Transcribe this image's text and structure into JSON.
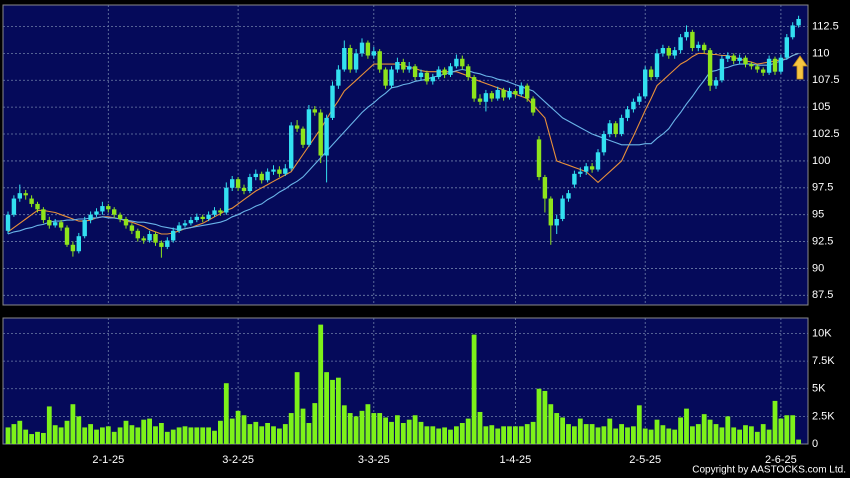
{
  "chart_data": {
    "type": "candlestick",
    "categories": [
      null,
      null,
      null,
      null,
      null,
      null,
      null,
      null,
      null,
      null,
      null,
      null,
      null,
      null,
      null,
      null,
      null,
      "2-1-25",
      null,
      null,
      null,
      null,
      null,
      null,
      null,
      null,
      null,
      null,
      null,
      null,
      null,
      null,
      null,
      null,
      null,
      null,
      null,
      null,
      null,
      "3-2-25",
      null,
      null,
      null,
      null,
      null,
      null,
      null,
      null,
      null,
      null,
      null,
      null,
      null,
      null,
      null,
      null,
      null,
      null,
      null,
      null,
      null,
      null,
      "3-3-25",
      null,
      null,
      null,
      null,
      null,
      null,
      null,
      null,
      null,
      null,
      null,
      null,
      null,
      null,
      null,
      null,
      null,
      null,
      null,
      null,
      null,
      null,
      null,
      "1-4-25",
      null,
      null,
      null,
      null,
      null,
      null,
      null,
      null,
      null,
      null,
      null,
      null,
      null,
      null,
      null,
      null,
      null,
      null,
      null,
      null,
      null,
      "2-5-25",
      null,
      null,
      null,
      null,
      null,
      null,
      null,
      null,
      null,
      null,
      null,
      null,
      null,
      null,
      null,
      null,
      null,
      null,
      null,
      null,
      null,
      null,
      "2-6-25",
      null,
      null,
      null
    ],
    "open": [
      93.5,
      95.0,
      96.5,
      97.0,
      96.5,
      96.0,
      95.5,
      94.5,
      94.0,
      94.3,
      93.8,
      92.2,
      91.6,
      93.0,
      94.5,
      95.0,
      95.3,
      95.8,
      95.5,
      95.0,
      94.6,
      94.0,
      93.5,
      92.8,
      92.6,
      93.2,
      92.4,
      92.0,
      92.6,
      93.5,
      94.0,
      94.2,
      94.5,
      94.8,
      94.6,
      95.0,
      95.4,
      95.2,
      97.5,
      98.3,
      97.5,
      97.2,
      98.5,
      98.8,
      98.2,
      99.0,
      99.2,
      98.8,
      99.3,
      103.3,
      103.0,
      101.5,
      104.8,
      104.5,
      100.5,
      104.0,
      107.0,
      108.5,
      110.5,
      108.5,
      110.0,
      111.0,
      109.8,
      110.2,
      108.5,
      107.0,
      108.5,
      109.2,
      108.5,
      108.8,
      107.8,
      108.2,
      107.4,
      107.8,
      108.5,
      108.0,
      108.8,
      109.5,
      108.8,
      107.8,
      105.8,
      105.5,
      106.3,
      105.8,
      106.6,
      105.9,
      106.5,
      106.2,
      107.0,
      105.8,
      102.0,
      98.5,
      96.5,
      94.0,
      94.6,
      96.5,
      97.8,
      98.8,
      99.0,
      99.5,
      99.2,
      100.8,
      102.5,
      103.5,
      102.5,
      104.0,
      104.8,
      105.5,
      106.0,
      108.5,
      107.8,
      110.0,
      110.5,
      109.8,
      110.3,
      111.5,
      112.0,
      110.5,
      110.8,
      110.3,
      107.0,
      107.5,
      109.5,
      109.8,
      109.3,
      109.6,
      109.0,
      108.8,
      108.5,
      108.2,
      109.5,
      108.3,
      109.6,
      111.5,
      112.6
    ],
    "high": [
      95.3,
      96.8,
      97.8,
      97.3,
      96.8,
      96.2,
      95.7,
      94.8,
      94.6,
      94.5,
      94.0,
      92.5,
      93.3,
      94.8,
      95.3,
      95.6,
      96.2,
      96.0,
      95.7,
      95.2,
      94.8,
      94.2,
      93.7,
      93.0,
      93.5,
      93.4,
      92.6,
      92.9,
      93.8,
      94.3,
      94.5,
      94.8,
      95.1,
      95.0,
      95.3,
      95.7,
      95.6,
      98.0,
      98.6,
      98.5,
      97.8,
      98.8,
      99.2,
      99.0,
      99.3,
      99.6,
      99.5,
      99.7,
      103.6,
      103.8,
      103.2,
      105.2,
      105.1,
      104.8,
      104.3,
      107.4,
      108.9,
      111.2,
      110.8,
      110.4,
      111.4,
      111.2,
      110.6,
      110.4,
      108.7,
      108.8,
      109.6,
      109.5,
      109.2,
      109.0,
      108.5,
      108.4,
      108.1,
      108.8,
      108.7,
      109.1,
      109.9,
      109.8,
      109.0,
      108.0,
      106.2,
      106.6,
      106.5,
      106.9,
      106.8,
      106.8,
      106.7,
      107.3,
      107.2,
      106.0,
      102.3,
      98.7,
      96.7,
      95.0,
      96.8,
      97.3,
      99.1,
      99.4,
      99.8,
      99.8,
      101.1,
      102.8,
      103.8,
      103.7,
      104.3,
      105.1,
      105.8,
      106.3,
      108.8,
      108.8,
      110.4,
      110.8,
      110.7,
      110.6,
      111.8,
      112.6,
      112.2,
      111.1,
      111.0,
      110.5,
      107.8,
      109.8,
      110.1,
      110.0,
      109.9,
      109.8,
      109.2,
      109.0,
      108.7,
      109.8,
      109.7,
      109.9,
      111.8,
      112.9,
      113.5
    ],
    "low": [
      93.2,
      94.8,
      96.2,
      96.4,
      95.7,
      95.2,
      94.2,
      93.7,
      93.8,
      93.5,
      92.0,
      91.1,
      91.4,
      92.8,
      94.2,
      94.8,
      95.0,
      95.2,
      94.7,
      94.3,
      93.7,
      93.2,
      92.5,
      92.3,
      92.4,
      92.1,
      91.0,
      91.8,
      92.4,
      93.3,
      93.8,
      94.0,
      94.3,
      94.3,
      94.4,
      94.8,
      94.9,
      95.0,
      97.2,
      97.2,
      96.9,
      97.0,
      98.2,
      97.9,
      98.0,
      98.7,
      98.5,
      98.6,
      99.1,
      102.7,
      101.2,
      101.3,
      104.2,
      99.8,
      98.0,
      103.8,
      106.7,
      108.3,
      108.2,
      108.2,
      109.7,
      109.5,
      109.5,
      108.2,
      106.7,
      106.8,
      108.2,
      108.2,
      108.2,
      107.5,
      107.5,
      107.1,
      107.1,
      107.6,
      107.7,
      107.8,
      108.6,
      108.5,
      107.5,
      105.5,
      105.2,
      104.6,
      105.5,
      105.6,
      105.6,
      105.7,
      105.9,
      106.0,
      105.5,
      104.2,
      98.2,
      95.2,
      92.2,
      93.2,
      94.4,
      96.2,
      97.5,
      98.5,
      98.7,
      98.9,
      99.0,
      100.5,
      102.2,
      102.2,
      102.3,
      103.7,
      104.5,
      105.2,
      105.8,
      107.5,
      107.6,
      109.7,
      109.5,
      109.5,
      110.0,
      111.2,
      110.2,
      110.2,
      110.0,
      106.5,
      106.7,
      107.3,
      109.2,
      109.0,
      109.0,
      108.7,
      108.5,
      108.2,
      107.9,
      108.0,
      108.0,
      108.1,
      109.4,
      111.3,
      112.4
    ],
    "close": [
      95.0,
      96.5,
      97.0,
      96.8,
      96.0,
      95.5,
      94.5,
      94.0,
      94.3,
      93.8,
      92.2,
      91.6,
      93.0,
      94.5,
      95.0,
      95.3,
      95.8,
      95.5,
      95.0,
      94.6,
      94.0,
      93.5,
      92.8,
      92.6,
      93.2,
      92.4,
      92.0,
      92.6,
      93.5,
      94.0,
      94.2,
      94.5,
      94.8,
      94.6,
      95.0,
      95.4,
      95.2,
      97.5,
      98.3,
      97.5,
      97.2,
      98.5,
      98.8,
      98.2,
      99.0,
      99.2,
      98.8,
      99.3,
      103.3,
      103.0,
      101.5,
      104.8,
      104.5,
      100.5,
      104.0,
      107.0,
      108.5,
      110.5,
      108.5,
      110.0,
      111.0,
      109.8,
      110.2,
      108.5,
      107.0,
      108.5,
      109.2,
      108.5,
      108.8,
      107.8,
      108.2,
      107.4,
      107.8,
      108.5,
      108.0,
      108.8,
      109.5,
      108.8,
      107.8,
      105.8,
      105.5,
      106.3,
      105.8,
      106.6,
      105.9,
      106.5,
      106.2,
      107.0,
      105.8,
      104.5,
      98.5,
      96.5,
      94.0,
      94.6,
      96.5,
      97.0,
      98.8,
      99.0,
      99.5,
      99.2,
      100.8,
      102.5,
      103.5,
      102.5,
      104.0,
      104.8,
      105.5,
      106.0,
      108.5,
      107.8,
      110.0,
      110.5,
      109.8,
      110.3,
      111.5,
      112.0,
      110.5,
      110.8,
      110.3,
      107.0,
      107.5,
      109.5,
      109.8,
      109.3,
      109.6,
      109.0,
      108.8,
      108.5,
      108.2,
      109.5,
      108.3,
      109.6,
      111.5,
      112.6,
      113.2
    ],
    "up_color": "#33e0f0",
    "down_color": "#8ee41c",
    "lines": [
      {
        "color": "#e8903a",
        "values": [
          93.4,
          93.8,
          94.2,
          94.6,
          95.0,
          95.4,
          95.4,
          95.3,
          95.2,
          95.0,
          94.8,
          94.6,
          94.4,
          94.4,
          94.5,
          94.7,
          94.8,
          94.8,
          94.7,
          94.6,
          94.4,
          94.3,
          94.1,
          93.9,
          93.6,
          93.4,
          93.2,
          93.2,
          93.3,
          93.5,
          93.7,
          93.8,
          94.0,
          94.2,
          94.5,
          94.8,
          95.1,
          95.4,
          95.6,
          96.0,
          96.4,
          96.8,
          97.2,
          97.5,
          97.8,
          98.1,
          98.4,
          98.7,
          99.0,
          99.8,
          100.6,
          101.4,
          102.2,
          103.0,
          103.9,
          104.8,
          105.6,
          106.5,
          107.0,
          107.5,
          108.0,
          108.5,
          109.0,
          109.0,
          109.0,
          109.0,
          109.0,
          108.9,
          108.7,
          108.6,
          108.4,
          108.3,
          108.3,
          108.3,
          108.3,
          108.3,
          108.3,
          108.1,
          107.9,
          107.6,
          107.4,
          107.2,
          107.0,
          106.8,
          106.6,
          106.4,
          106.2,
          106.0,
          105.8,
          105.2,
          104.6,
          104.0,
          102.0,
          100.0,
          99.8,
          99.6,
          99.4,
          99.2,
          99.0,
          98.5,
          98.0,
          98.5,
          99.0,
          99.5,
          100.0,
          101.2,
          102.3,
          103.5,
          104.7,
          105.8,
          107.0,
          107.5,
          108.0,
          108.5,
          109.0,
          109.3,
          109.7,
          110.0,
          110.0,
          109.9,
          109.9,
          109.8,
          109.8,
          109.6,
          109.5,
          109.3,
          109.2,
          109.0,
          109.1,
          109.2,
          109.3,
          109.4,
          109.5,
          109.8,
          110.0
        ]
      },
      {
        "color": "#6ab4e8",
        "values": [
          93.2,
          93.4,
          93.5,
          93.7,
          93.8,
          94.0,
          94.1,
          94.3,
          94.4,
          94.4,
          94.5,
          94.5,
          94.6,
          94.6,
          94.7,
          94.7,
          94.8,
          94.7,
          94.7,
          94.6,
          94.5,
          94.4,
          94.3,
          94.3,
          94.2,
          94.1,
          93.9,
          93.8,
          93.7,
          93.6,
          93.7,
          93.8,
          93.9,
          94.0,
          94.1,
          94.2,
          94.3,
          94.5,
          94.8,
          95.0,
          95.3,
          95.5,
          95.8,
          96.0,
          96.4,
          96.7,
          97.1,
          97.4,
          97.8,
          98.1,
          98.5,
          99.1,
          99.7,
          100.3,
          100.9,
          101.5,
          102.1,
          102.7,
          103.3,
          103.9,
          104.5,
          105.0,
          105.4,
          105.9,
          106.3,
          106.8,
          106.9,
          107.1,
          107.2,
          107.4,
          107.5,
          107.6,
          107.8,
          107.9,
          108.1,
          108.2,
          108.4,
          108.5,
          108.4,
          108.2,
          108.1,
          107.9,
          107.8,
          107.6,
          107.5,
          107.3,
          107.1,
          106.9,
          106.7,
          106.5,
          106.0,
          105.5,
          105.0,
          104.5,
          104.0,
          103.7,
          103.4,
          103.1,
          102.8,
          102.5,
          102.3,
          102.1,
          101.9,
          101.7,
          101.5,
          101.5,
          101.5,
          101.5,
          101.6,
          101.6,
          102.1,
          102.5,
          103.0,
          103.8,
          104.5,
          105.3,
          106.0,
          106.8,
          107.5,
          108.3,
          108.4,
          108.6,
          108.7,
          108.9,
          109.0,
          109.0,
          109.0,
          108.9,
          108.9,
          108.9,
          109.1,
          109.3,
          109.5,
          109.8,
          110.0
        ]
      }
    ],
    "ylim": [
      86.6,
      114.5
    ],
    "yticks": [
      87.5,
      90,
      92.5,
      95,
      97.5,
      100,
      102.5,
      105,
      107.5,
      110,
      112.5
    ],
    "volume": [
      1500,
      1800,
      2100,
      1300,
      900,
      1100,
      1000,
      3400,
      1700,
      1500,
      2100,
      3600,
      2500,
      1500,
      1800,
      1300,
      1500,
      1600,
      1100,
      1500,
      2100,
      1700,
      1500,
      2200,
      2300,
      1600,
      1900,
      1100,
      1300,
      1500,
      1600,
      1500,
      1500,
      1500,
      1500,
      1200,
      2100,
      5500,
      2300,
      3000,
      2600,
      1800,
      2000,
      1600,
      1900,
      1600,
      1400,
      1800,
      2800,
      6500,
      3200,
      1900,
      3700,
      10800,
      6500,
      5800,
      6000,
      3500,
      2800,
      2500,
      3000,
      3600,
      2800,
      2800,
      2400,
      2000,
      2600,
      1900,
      2200,
      2600,
      2000,
      1600,
      1600,
      1400,
      1500,
      1300,
      1600,
      1900,
      2300,
      9900,
      2900,
      1600,
      1700,
      1400,
      1600,
      1600,
      1600,
      1600,
      1800,
      2000,
      5000,
      4800,
      3600,
      2800,
      2400,
      1800,
      1600,
      2300,
      1800,
      1800,
      1500,
      1600,
      2300,
      1400,
      1800,
      1500,
      1600,
      3500,
      1400,
      1300,
      2200,
      1700,
      1400,
      1300,
      2400,
      3200,
      1600,
      1800,
      2700,
      2200,
      1800,
      1500,
      2500,
      1500,
      1300,
      1700,
      1600,
      1100,
      1800,
      1300,
      3900,
      2300,
      2600,
      2600,
      400
    ],
    "volume_color": "#7df21a",
    "volume_ylim": [
      0,
      11400
    ],
    "volume_yticks": [
      0,
      {
        "value": 2500,
        "label": "2.5K"
      },
      {
        "value": 5000,
        "label": "5K"
      },
      {
        "value": 7500,
        "label": "7.5K"
      },
      {
        "value": 10000,
        "label": "10K"
      }
    ],
    "grid": true
  },
  "copyright": "Copyright by AASTOCKS.com Ltd."
}
